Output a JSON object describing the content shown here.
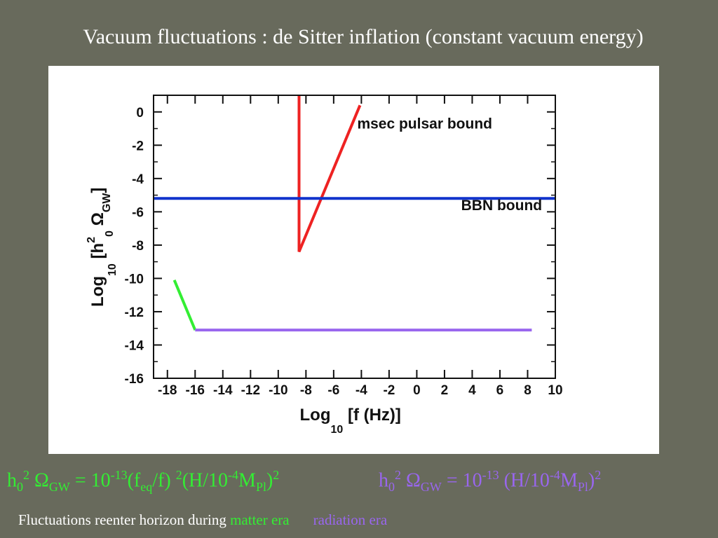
{
  "slide": {
    "title": "Vacuum fluctuations : de Sitter inflation (constant vacuum energy)"
  },
  "formulas": {
    "matter": {
      "h": "h",
      "h_sub": "0",
      "h_sup": "2",
      "omega": " Ω",
      "omega_sub": "GW",
      "eq": " =  10",
      "exp": "-13",
      "p1": "(f",
      "p1_sub": "eq",
      "p2": "/f) ",
      "p2_sup": "2",
      "p3": "(H/10",
      "p3_sup": "-4",
      "p4": "M",
      "p4_sub": "Pl",
      "p5": ")",
      "p5_sup": "2"
    },
    "radiation": {
      "h": "h",
      "h_sub": "0",
      "h_sup": "2",
      "omega": " Ω",
      "omega_sub": "GW",
      "eq": " =  10",
      "exp": "-13",
      "p1": " (H/10",
      "p1_sup": "-4",
      "p2": "M",
      "p2_sub": "Pl",
      "p3": ")",
      "p3_sup": "2"
    }
  },
  "caption": {
    "lead": "Fluctuations reenter horizon during ",
    "matter": "matter era",
    "radiation": "radiation era"
  },
  "colors": {
    "background": "#686a5c",
    "matter": "#33ee33",
    "radiation": "#9966ee",
    "pulsar": "#ee2222",
    "bbn": "#1133cc"
  },
  "chart_data": {
    "type": "line",
    "xlim": [
      -19,
      10
    ],
    "ylim": [
      -16,
      1
    ],
    "xticks": [
      -18,
      -16,
      -14,
      -12,
      -10,
      -8,
      -6,
      -4,
      -2,
      0,
      2,
      4,
      6,
      8,
      10
    ],
    "yticks": [
      0,
      -2,
      -4,
      -6,
      -8,
      -10,
      -12,
      -14,
      -16
    ],
    "xlabel": {
      "main": "Log",
      "sub": "10",
      "rest": "[f (Hz)]"
    },
    "ylabel": {
      "main": "Log",
      "sub": "10",
      "rest1": "[h",
      "sup": "2",
      "sub2": "0",
      "rest2": " Ω",
      "sub3": "GW",
      "rest3": "]"
    },
    "series": [
      {
        "name": "msec pulsar bound",
        "color": "#ee2222",
        "points": [
          [
            -8.5,
            1
          ],
          [
            -8.5,
            -8.4
          ],
          [
            -4.1,
            0.4
          ]
        ]
      },
      {
        "name": "BBN bound",
        "color": "#1133cc",
        "points": [
          [
            -19,
            -5.2
          ],
          [
            10,
            -5.2
          ]
        ]
      },
      {
        "name": "",
        "color": "#33ee33",
        "points": [
          [
            -17.5,
            -10.1
          ],
          [
            -16.0,
            -13.1
          ]
        ]
      },
      {
        "name": "",
        "color": "#9966ee",
        "points": [
          [
            -16.0,
            -13.1
          ],
          [
            8.3,
            -13.1
          ]
        ]
      }
    ],
    "annotations": [
      {
        "text": "msec pulsar bound",
        "x": -4.3,
        "y": -1.0
      },
      {
        "text": "BBN bound",
        "x": 3.2,
        "y": -5.9
      }
    ]
  }
}
